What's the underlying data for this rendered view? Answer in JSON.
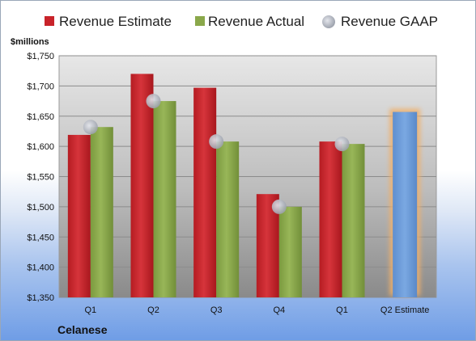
{
  "chart_data": {
    "type": "bar",
    "ylabel": "$millions",
    "categories": [
      "Q1",
      "Q2",
      "Q3",
      "Q4",
      "Q1",
      "Q2 Estimate"
    ],
    "ylim": [
      1350,
      1750
    ],
    "yticks": [
      "$1,750",
      "$1,700",
      "$1,650",
      "$1,600",
      "$1,550",
      "$1,500",
      "$1,450",
      "$1,400",
      "$1,350"
    ],
    "series": [
      {
        "name": "Revenue Estimate",
        "color": "#c8232a",
        "values": [
          1619,
          1720,
          1697,
          1521,
          1608,
          null
        ]
      },
      {
        "name": "Revenue Actual",
        "color": "#8aa84a",
        "values": [
          1632,
          1675,
          1608,
          1500,
          1604,
          null
        ]
      },
      {
        "name": "Revenue GAAP",
        "color": "#b8bcc6",
        "marker": "circle",
        "values": [
          1632,
          1675,
          1608,
          1500,
          1604,
          null
        ]
      },
      {
        "name": "",
        "color": "#6b9bd6",
        "highlight": "#f0b06a",
        "values": [
          null,
          null,
          null,
          null,
          null,
          1657
        ]
      }
    ],
    "grid": true,
    "legend": "top"
  },
  "company": "Celanese"
}
